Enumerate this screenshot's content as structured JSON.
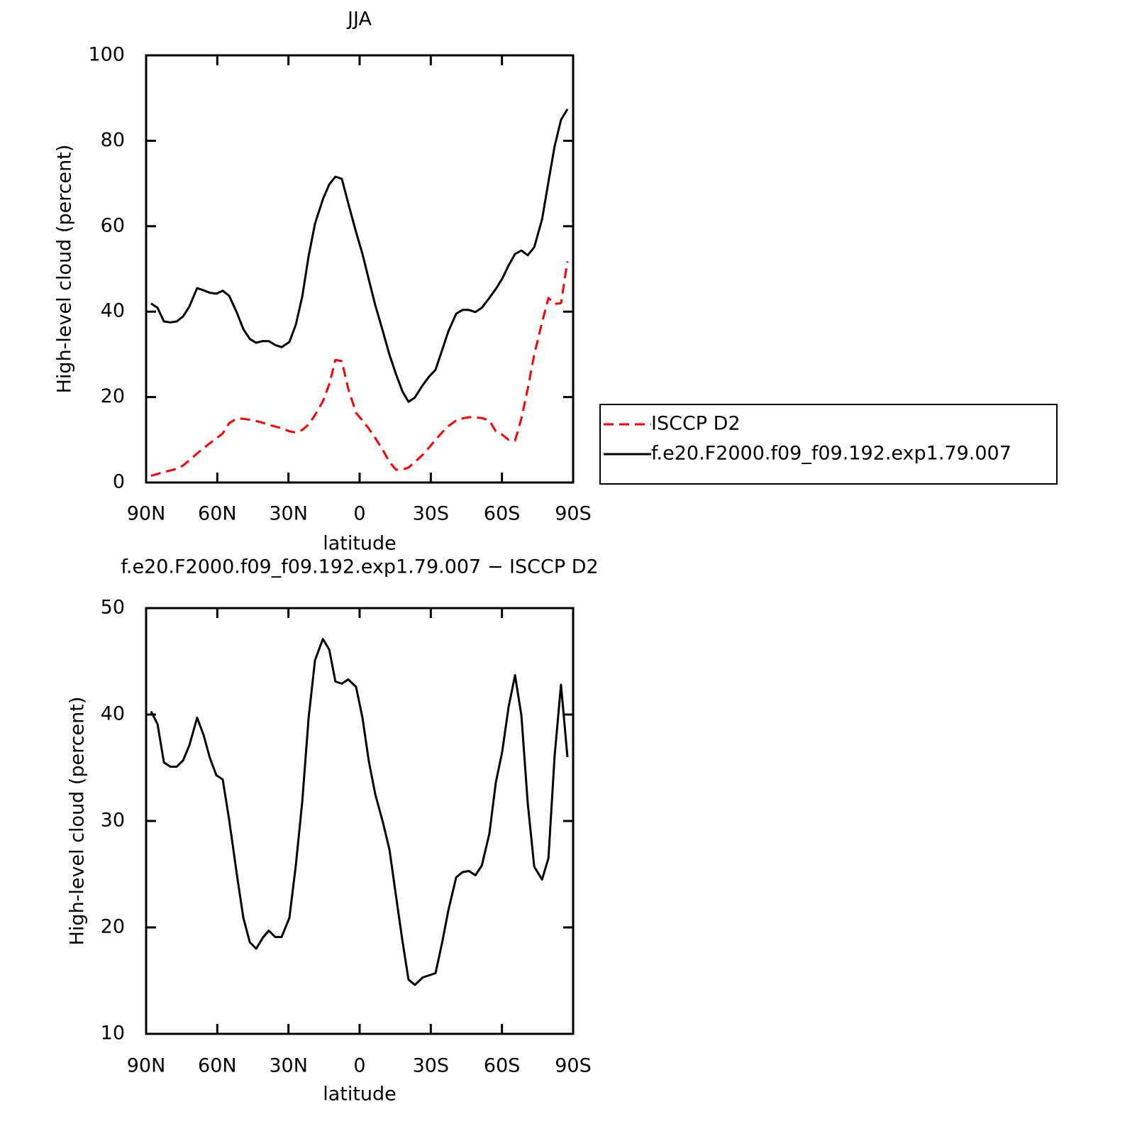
{
  "chart_data": [
    {
      "type": "line",
      "title": "JJA",
      "x_label": "latitude",
      "y_label": "High-level cloud (percent)",
      "x": [
        87.9,
        85.2,
        82.5,
        79.8,
        77.1,
        74.4,
        71.8,
        68.5,
        65.8,
        63.1,
        60.4,
        57.7,
        55.0,
        51.7,
        49.0,
        46.3,
        43.6,
        40.9,
        38.3,
        35.6,
        32.9,
        29.6,
        26.9,
        24.2,
        21.5,
        18.8,
        15.5,
        12.8,
        10.2,
        7.5,
        4.8,
        1.5,
        -1.2,
        -3.9,
        -6.6,
        -9.9,
        -12.6,
        -15.3,
        -18.0,
        -20.6,
        -23.3,
        -26.6,
        -29.3,
        -32.0,
        -34.7,
        -37.4,
        -40.7,
        -43.4,
        -46.1,
        -48.8,
        -51.5,
        -54.7,
        -57.4,
        -60.1,
        -62.8,
        -65.5,
        -68.2,
        -70.9,
        -73.6,
        -76.9,
        -79.6,
        -82.2,
        -84.9,
        -87.6
      ],
      "series": [
        {
          "name": "ISCCP D2",
          "color": "#ff0000",
          "line_style": "dashed",
          "values": [
            1.6,
            2.0,
            2.5,
            2.8,
            3.2,
            4.0,
            5.2,
            6.8,
            8.0,
            9.2,
            10.3,
            11.5,
            13.9,
            15.0,
            14.9,
            14.7,
            14.4,
            14.0,
            13.5,
            13.1,
            12.7,
            12.0,
            11.7,
            12.3,
            13.6,
            15.8,
            19.0,
            23.0,
            28.7,
            28.4,
            22.0,
            16.3,
            14.5,
            12.6,
            10.4,
            7.5,
            4.8,
            3.0,
            3.0,
            3.5,
            4.8,
            6.5,
            8.2,
            10.0,
            11.7,
            13.2,
            14.5,
            15.0,
            15.3,
            15.2,
            15.1,
            14.5,
            12.0,
            11.2,
            10.0,
            9.8,
            15.0,
            22.0,
            30.0,
            37.5,
            43.2,
            41.8,
            42.0,
            51.8
          ]
        },
        {
          "name": "f.e20.F2000.f09_f09.192.exp1.79.007",
          "color": "#000000",
          "line_style": "solid",
          "values": [
            41.9,
            40.9,
            37.7,
            37.5,
            37.7,
            38.9,
            41.2,
            45.5,
            45.0,
            44.4,
            44.2,
            44.9,
            43.7,
            39.7,
            35.9,
            33.6,
            32.7,
            33.1,
            33.1,
            32.2,
            31.7,
            32.9,
            36.9,
            43.5,
            53.0,
            60.6,
            66.3,
            69.8,
            71.6,
            71.1,
            65.4,
            58.6,
            53.5,
            47.5,
            41.5,
            35.2,
            29.9,
            25.4,
            21.4,
            18.9,
            19.9,
            22.8,
            24.8,
            26.4,
            30.9,
            35.4,
            39.5,
            40.4,
            40.4,
            39.9,
            40.9,
            43.2,
            45.3,
            47.7,
            50.8,
            53.5,
            54.3,
            53.2,
            55.1,
            61.6,
            70.4,
            78.7,
            84.9,
            87.4
          ]
        }
      ],
      "xlim": [
        90,
        -90
      ],
      "xticks": [
        {
          "value": 90,
          "label": "90N"
        },
        {
          "value": 60,
          "label": "60N"
        },
        {
          "value": 30,
          "label": "30N"
        },
        0,
        {
          "value": -30,
          "label": "30S"
        },
        {
          "value": -60,
          "label": "60S"
        },
        {
          "value": -90,
          "label": "90S"
        }
      ],
      "ylim": [
        0,
        100
      ],
      "yticks": [
        0,
        20,
        40,
        60,
        80,
        100
      ],
      "legend": "right"
    },
    {
      "type": "line",
      "title": "f.e20.F2000.f09_f09.192.exp1.79.007 − ISCCP D2",
      "x_label": "latitude",
      "y_label": "High-level cloud (percent)",
      "x": [
        87.9,
        85.2,
        82.5,
        79.8,
        77.1,
        74.4,
        71.8,
        68.5,
        65.8,
        63.1,
        60.4,
        57.7,
        55.0,
        51.7,
        49.0,
        46.3,
        43.6,
        40.9,
        38.3,
        35.6,
        32.9,
        29.6,
        26.9,
        24.2,
        21.5,
        18.8,
        15.5,
        12.8,
        10.2,
        7.5,
        4.8,
        1.5,
        -1.2,
        -3.9,
        -6.6,
        -9.9,
        -12.6,
        -15.3,
        -18.0,
        -20.6,
        -23.3,
        -26.6,
        -29.3,
        -32.0,
        -34.7,
        -37.4,
        -40.7,
        -43.4,
        -46.1,
        -48.8,
        -51.5,
        -54.7,
        -57.4,
        -60.1,
        -62.8,
        -65.5,
        -68.2,
        -70.9,
        -73.6,
        -76.9,
        -79.6,
        -82.2,
        -84.9,
        -87.6
      ],
      "color": "#000000",
      "values": [
        40.3,
        39.1,
        35.5,
        35.1,
        35.1,
        35.7,
        37.1,
        39.7,
        38.1,
        35.9,
        34.3,
        33.9,
        30.1,
        24.9,
        20.9,
        18.6,
        18.0,
        19.0,
        19.7,
        19.1,
        19.1,
        20.9,
        25.8,
        31.8,
        39.7,
        45.1,
        47.1,
        46.1,
        43.1,
        42.9,
        43.3,
        42.6,
        39.7,
        35.6,
        32.5,
        29.8,
        27.3,
        23.0,
        18.8,
        15.1,
        14.6,
        15.3,
        15.5,
        15.7,
        18.5,
        21.6,
        24.7,
        25.2,
        25.3,
        24.9,
        25.8,
        28.8,
        33.6,
        36.5,
        40.7,
        43.7,
        39.9,
        31.6,
        25.7,
        24.5,
        26.5,
        36.1,
        42.8,
        36.0
      ],
      "xlim": [
        90,
        -90
      ],
      "xticks": [
        {
          "value": 90,
          "label": "90N"
        },
        {
          "value": 60,
          "label": "60N"
        },
        {
          "value": 30,
          "label": "30N"
        },
        0,
        {
          "value": -30,
          "label": "30S"
        },
        {
          "value": -60,
          "label": "60S"
        },
        {
          "value": -90,
          "label": "90S"
        }
      ],
      "ylim": [
        10,
        50
      ],
      "yticks": [
        10,
        20,
        30,
        40,
        50
      ]
    }
  ]
}
